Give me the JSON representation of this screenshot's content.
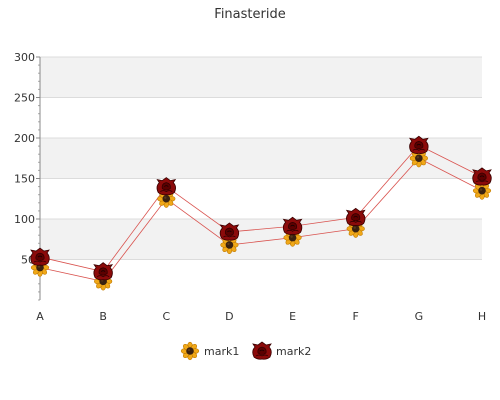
{
  "chart_data": {
    "type": "line",
    "title": "Finasteride",
    "xlabel": "",
    "ylabel": "",
    "categories": [
      "A",
      "B",
      "C",
      "D",
      "E",
      "F",
      "G",
      "H"
    ],
    "ylim": [
      0,
      300
    ],
    "yticks": [
      50,
      100,
      150,
      200,
      250,
      300
    ],
    "grid": true,
    "legend_position": "bottom-center",
    "series": [
      {
        "name": "mark1",
        "values": [
          40,
          23,
          125,
          68,
          77,
          88,
          175,
          135
        ],
        "color": "#d9534f",
        "marker": "sunflower"
      },
      {
        "name": "mark2",
        "values": [
          53,
          35,
          140,
          84,
          91,
          102,
          191,
          152
        ],
        "color": "#d9534f",
        "marker": "red-rose"
      }
    ]
  }
}
